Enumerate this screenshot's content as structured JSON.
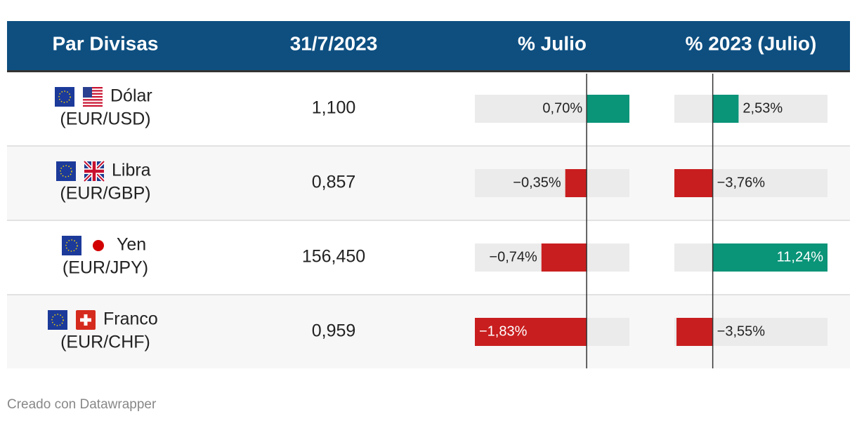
{
  "header": [
    "Par Divisas",
    "31/7/2023",
    "% Julio",
    "% 2023 (Julio)"
  ],
  "rows": [
    {
      "currency": "Dólar",
      "pair": "(EUR/USD)",
      "rate": "1,100",
      "julio": {
        "value": 0.7,
        "label": "0,70%"
      },
      "ytd": {
        "value": 2.53,
        "label": "2,53%"
      }
    },
    {
      "currency": "Libra",
      "pair": "(EUR/GBP)",
      "rate": "0,857",
      "julio": {
        "value": -0.35,
        "label": "−0,35%"
      },
      "ytd": {
        "value": -3.76,
        "label": "−3,76%"
      }
    },
    {
      "currency": "Yen",
      "pair": "(EUR/JPY)",
      "rate": "156,450",
      "julio": {
        "value": -0.74,
        "label": "−0,74%"
      },
      "ytd": {
        "value": 11.24,
        "label": "11,24%"
      }
    },
    {
      "currency": "Franco",
      "pair": "(EUR/CHF)",
      "rate": "0,959",
      "julio": {
        "value": -1.83,
        "label": "−1,83%"
      },
      "ytd": {
        "value": -3.55,
        "label": "−3,55%"
      }
    }
  ],
  "footer": "Creado con Datawrapper"
}
